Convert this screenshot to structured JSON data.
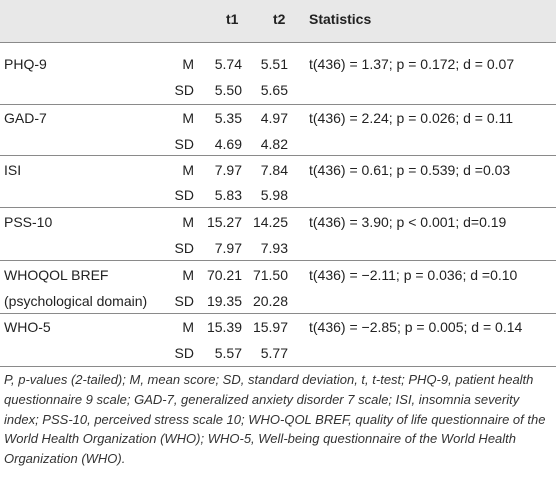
{
  "table": {
    "headers": {
      "t1": "t1",
      "t2": "t2",
      "stats": "Statistics"
    },
    "groups": [
      {
        "label": "PHQ-9",
        "label2": "",
        "m": {
          "ms": "M",
          "t1": "5.74",
          "t2": "5.51"
        },
        "sd": {
          "ms": "SD",
          "t1": "5.50",
          "t2": "5.65"
        },
        "stat": "t(436) = 1.37; p = 0.172; d = 0.07"
      },
      {
        "label": "GAD-7",
        "label2": "",
        "m": {
          "ms": "M",
          "t1": "5.35",
          "t2": "4.97"
        },
        "sd": {
          "ms": "SD",
          "t1": "4.69",
          "t2": "4.82"
        },
        "stat": "t(436) = 2.24; p = 0.026; d = 0.11"
      },
      {
        "label": "ISI",
        "label2": "",
        "m": {
          "ms": "M",
          "t1": "7.97",
          "t2": "7.84"
        },
        "sd": {
          "ms": "SD",
          "t1": "5.83",
          "t2": "5.98"
        },
        "stat": "t(436) = 0.61; p = 0.539; d =0.03"
      },
      {
        "label": "PSS-10",
        "label2": "",
        "m": {
          "ms": "M",
          "t1": "15.27",
          "t2": "14.25"
        },
        "sd": {
          "ms": "SD",
          "t1": "7.97",
          "t2": "7.93"
        },
        "stat": "t(436) = 3.90; p < 0.001; d=0.19"
      },
      {
        "label": "WHOQOL BREF",
        "label2": "(psychological domain)",
        "m": {
          "ms": "M",
          "t1": "70.21",
          "t2": "71.50"
        },
        "sd": {
          "ms": "SD",
          "t1": "19.35",
          "t2": "20.28"
        },
        "stat": "t(436) = −2.11; p = 0.036; d =0.10"
      },
      {
        "label": "WHO-5",
        "label2": "",
        "m": {
          "ms": "M",
          "t1": "15.39",
          "t2": "15.97"
        },
        "sd": {
          "ms": "SD",
          "t1": "5.57",
          "t2": "5.77"
        },
        "stat": "t(436) = −2.85; p = 0.005; d = 0.14"
      }
    ]
  },
  "footnote": "P, p-values (2-tailed); M, mean score; SD, standard deviation, t, t-test; PHQ-9, patient health questionnaire 9 scale; GAD-7, generalized anxiety disorder 7 scale; ISI, insomnia severity index; PSS-10, perceived stress scale 10; WHO-QOL BREF, quality of life questionnaire of the World Health Organization (WHO); WHO-5, Well-being questionnaire of the World Health Organization (WHO)."
}
